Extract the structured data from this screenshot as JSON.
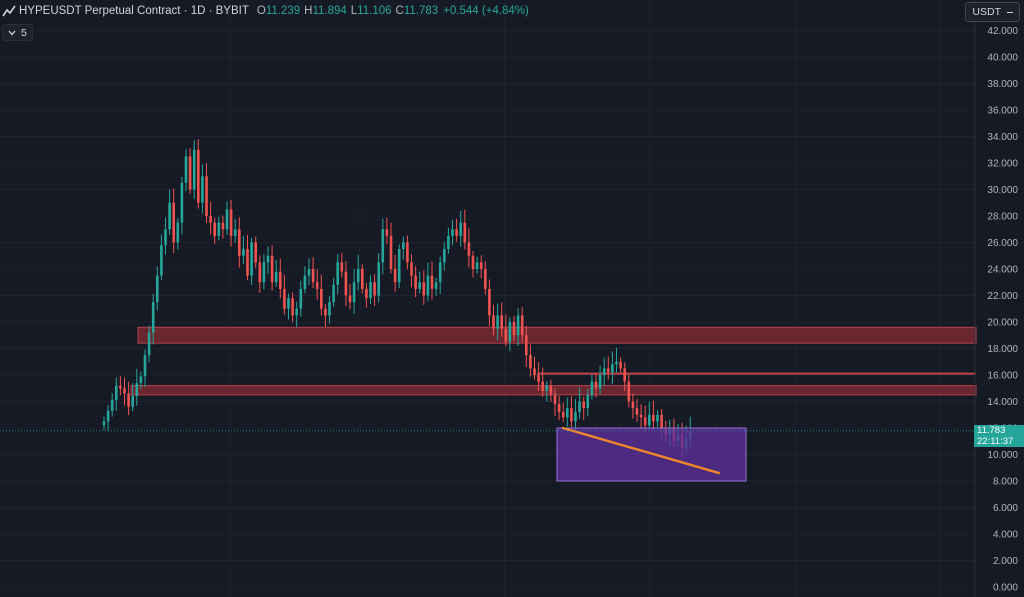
{
  "header": {
    "symbol_title": "HYPEUSDT Perpetual Contract · 1D · BYBIT",
    "ohlc": [
      {
        "key": "O",
        "value": "11.239"
      },
      {
        "key": "H",
        "value": "11.894"
      },
      {
        "key": "L",
        "value": "11.106"
      },
      {
        "key": "C",
        "value": "11.783"
      }
    ],
    "change": "+0.544 (+4.84%)",
    "indicator_count": "5",
    "currency": "USDT"
  },
  "last_price": {
    "value": "11.783",
    "countdown": "22:11:37"
  },
  "chart_data": {
    "type": "candlestick",
    "title": "HYPEUSDT Perpetual Contract · 1D · BYBIT",
    "y_ticks": [
      "0.000",
      "2.000",
      "4.000",
      "6.000",
      "8.000",
      "10.000",
      "12.000",
      "14.000",
      "16.000",
      "18.000",
      "20.000",
      "22.000",
      "24.000",
      "26.000",
      "28.000",
      "30.000",
      "32.000",
      "34.000",
      "36.000",
      "38.000",
      "40.000",
      "42.000"
    ],
    "ylim": [
      0,
      42
    ],
    "grid": true,
    "last_close": 11.783,
    "colors": {
      "up": "#26a69a",
      "down": "#ef5350",
      "zone": "#8b2c33",
      "box": "#5b2f9a",
      "trendline": "#f0862a",
      "background": "#161a25"
    },
    "zones": [
      {
        "type": "resistance_zone",
        "from": 18.4,
        "to": 19.6
      },
      {
        "type": "resistance_zone",
        "from": 14.5,
        "to": 15.2
      },
      {
        "type": "horizontal_line",
        "price": 16.1
      }
    ],
    "rectangle": {
      "price_top": 12.0,
      "price_bottom": 8.0
    },
    "trendline": {
      "price_start": 12.0,
      "price_end": 8.6
    },
    "closes": [
      12.5,
      13.3,
      14.1,
      15.2,
      15.0,
      14.6,
      13.6,
      14.4,
      15.4,
      15.9,
      17.5,
      19.2,
      21.5,
      23.5,
      25.8,
      27.0,
      29.0,
      26.0,
      27.5,
      30.5,
      32.5,
      30.0,
      33.0,
      29.0,
      31.0,
      28.0,
      27.5,
      26.5,
      27.5,
      27.0,
      28.5,
      26.5,
      27.0,
      25.0,
      25.5,
      23.5,
      26.0,
      24.5,
      23.0,
      24.5,
      25.0,
      23.0,
      23.8,
      22.5,
      21.0,
      21.8,
      20.5,
      21.0,
      22.5,
      23.5,
      24.0,
      23.0,
      22.5,
      21.0,
      20.5,
      21.5,
      22.8,
      24.5,
      23.8,
      22.0,
      21.5,
      23.0,
      24.0,
      22.5,
      21.8,
      23.0,
      22.0,
      24.5,
      27.0,
      26.5,
      24.0,
      23.0,
      25.5,
      26.0,
      24.5,
      23.5,
      22.5,
      23.0,
      22.0,
      23.5,
      22.5,
      23.0,
      24.5,
      25.5,
      26.5,
      27.0,
      26.5,
      27.5,
      26.0,
      25.0,
      24.0,
      24.5,
      24.0,
      22.5,
      20.5,
      19.5,
      20.5,
      19.5,
      18.5,
      20.0,
      19.0,
      20.5,
      19.0,
      17.5,
      16.5,
      16.0,
      15.5,
      14.8,
      15.2,
      14.5,
      13.8,
      13.2,
      12.8,
      13.5,
      12.5,
      13.2,
      14.0,
      13.5,
      14.5,
      15.5,
      15.0,
      16.0,
      16.5,
      16.2,
      16.8,
      17.0,
      16.5,
      15.5,
      14.0,
      13.5,
      13.0,
      12.8,
      12.2,
      13.0,
      12.5,
      13.0,
      12.0,
      11.5,
      12.0,
      11.0,
      11.5,
      10.5,
      11.2,
      11.783
    ]
  }
}
